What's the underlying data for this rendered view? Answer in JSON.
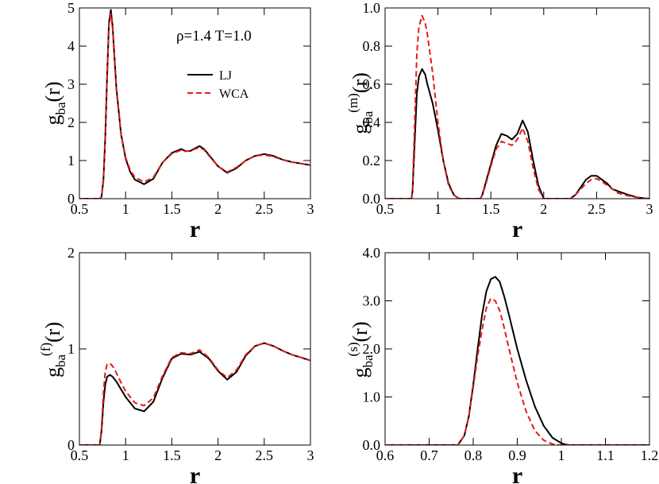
{
  "figure": {
    "annotation": "ρ=1.4   T=1.0",
    "legend": [
      {
        "label": "LJ",
        "color": "#000000",
        "dash": "solid"
      },
      {
        "label": "WCA",
        "color": "#e41a1c",
        "dash": "dashed"
      }
    ]
  },
  "chart_data": [
    {
      "type": "line",
      "name": "top-left",
      "ylabel_main": "g",
      "ylabel_sub": "ba",
      "ylabel_sup": "",
      "ylabel_tail": "(r)",
      "xlabel": "r",
      "xlim": [
        0.5,
        3.0
      ],
      "ylim": [
        0,
        5
      ],
      "xticks": [
        0.5,
        1,
        1.5,
        2,
        2.5,
        3
      ],
      "xtick_labels": [
        "0.5",
        "1",
        "1.5",
        "2",
        "2.5",
        "3"
      ],
      "yticks": [
        0,
        1,
        2,
        3,
        4,
        5
      ],
      "ytick_labels": [
        "0",
        "1",
        "2",
        "3",
        "4",
        "5"
      ],
      "series": [
        {
          "name": "LJ",
          "color": "#000000",
          "dash": "solid",
          "x": [
            0.5,
            0.72,
            0.74,
            0.76,
            0.78,
            0.8,
            0.82,
            0.84,
            0.86,
            0.88,
            0.9,
            0.95,
            1.0,
            1.05,
            1.1,
            1.2,
            1.3,
            1.4,
            1.5,
            1.6,
            1.65,
            1.7,
            1.75,
            1.8,
            1.85,
            1.9,
            2.0,
            2.1,
            2.2,
            2.3,
            2.4,
            2.5,
            2.6,
            2.7,
            2.8,
            3.0
          ],
          "y": [
            0,
            0,
            0.05,
            0.5,
            1.6,
            3.2,
            4.6,
            4.95,
            4.5,
            3.7,
            2.9,
            1.7,
            1.05,
            0.7,
            0.5,
            0.38,
            0.52,
            0.95,
            1.2,
            1.3,
            1.25,
            1.25,
            1.32,
            1.38,
            1.3,
            1.15,
            0.85,
            0.68,
            0.8,
            1.0,
            1.12,
            1.17,
            1.12,
            1.02,
            0.96,
            0.88
          ]
        },
        {
          "name": "WCA",
          "color": "#e41a1c",
          "dash": "dashed",
          "x": [
            0.5,
            0.72,
            0.74,
            0.76,
            0.78,
            0.8,
            0.82,
            0.84,
            0.86,
            0.88,
            0.9,
            0.95,
            1.0,
            1.05,
            1.1,
            1.2,
            1.3,
            1.4,
            1.5,
            1.6,
            1.65,
            1.7,
            1.75,
            1.8,
            1.85,
            1.9,
            2.0,
            2.1,
            2.2,
            2.3,
            2.4,
            2.5,
            2.6,
            2.7,
            2.8,
            3.0
          ],
          "y": [
            0,
            0,
            0.06,
            0.55,
            1.7,
            3.25,
            4.55,
            4.85,
            4.45,
            3.65,
            2.85,
            1.7,
            1.08,
            0.75,
            0.56,
            0.44,
            0.56,
            0.95,
            1.18,
            1.27,
            1.24,
            1.26,
            1.3,
            1.34,
            1.28,
            1.13,
            0.85,
            0.7,
            0.82,
            1.0,
            1.12,
            1.15,
            1.1,
            1.02,
            0.96,
            0.88
          ]
        }
      ]
    },
    {
      "type": "line",
      "name": "top-right",
      "ylabel_main": "g",
      "ylabel_sub": "ba",
      "ylabel_sup": "(m)",
      "ylabel_tail": "(r)",
      "xlabel": "r",
      "xlim": [
        0.5,
        3.0
      ],
      "ylim": [
        0,
        1.0
      ],
      "xticks": [
        0.5,
        1,
        1.5,
        2,
        2.5,
        3
      ],
      "xtick_labels": [
        "0.5",
        "1",
        "1.5",
        "2",
        "2.5",
        "3"
      ],
      "yticks": [
        0,
        0.2,
        0.4,
        0.6,
        0.8,
        1.0
      ],
      "ytick_labels": [
        "0.0",
        "0.2",
        "0.4",
        "0.6",
        "0.8",
        "1.0"
      ],
      "series": [
        {
          "name": "LJ",
          "color": "#000000",
          "dash": "solid",
          "x": [
            0.5,
            0.75,
            0.76,
            0.78,
            0.8,
            0.82,
            0.85,
            0.88,
            0.9,
            0.95,
            1.0,
            1.05,
            1.1,
            1.15,
            1.2,
            1.4,
            1.42,
            1.45,
            1.5,
            1.55,
            1.6,
            1.65,
            1.7,
            1.75,
            1.8,
            1.85,
            1.9,
            1.95,
            2.0,
            2.25,
            2.3,
            2.35,
            2.4,
            2.45,
            2.5,
            2.55,
            2.6,
            2.65,
            2.7,
            2.8,
            2.9,
            3.0
          ],
          "y": [
            0,
            0,
            0.04,
            0.3,
            0.55,
            0.64,
            0.68,
            0.65,
            0.6,
            0.5,
            0.36,
            0.2,
            0.08,
            0.02,
            0,
            0,
            0.02,
            0.08,
            0.18,
            0.28,
            0.34,
            0.33,
            0.31,
            0.34,
            0.41,
            0.35,
            0.2,
            0.07,
            0,
            0,
            0.02,
            0.06,
            0.1,
            0.12,
            0.12,
            0.1,
            0.08,
            0.05,
            0.04,
            0.02,
            0.005,
            0
          ]
        },
        {
          "name": "WCA",
          "color": "#e41a1c",
          "dash": "dashed",
          "x": [
            0.5,
            0.75,
            0.76,
            0.78,
            0.8,
            0.82,
            0.85,
            0.88,
            0.9,
            0.95,
            1.0,
            1.05,
            1.1,
            1.15,
            1.2,
            1.4,
            1.42,
            1.45,
            1.5,
            1.55,
            1.6,
            1.65,
            1.7,
            1.75,
            1.8,
            1.85,
            1.9,
            1.95,
            2.0,
            2.25,
            2.3,
            2.35,
            2.4,
            2.45,
            2.5,
            2.55,
            2.6,
            2.65,
            2.7,
            2.8,
            2.9,
            3.0
          ],
          "y": [
            0,
            0,
            0.05,
            0.4,
            0.76,
            0.9,
            0.96,
            0.92,
            0.86,
            0.66,
            0.4,
            0.2,
            0.07,
            0.02,
            0,
            0,
            0.02,
            0.07,
            0.17,
            0.26,
            0.3,
            0.29,
            0.28,
            0.31,
            0.37,
            0.3,
            0.16,
            0.05,
            0,
            0,
            0.02,
            0.05,
            0.08,
            0.1,
            0.105,
            0.09,
            0.07,
            0.05,
            0.03,
            0.015,
            0.005,
            0
          ]
        }
      ]
    },
    {
      "type": "line",
      "name": "bottom-left",
      "ylabel_main": "g",
      "ylabel_sub": "ba",
      "ylabel_sup": "(f)",
      "ylabel_tail": "(r)",
      "xlabel": "r",
      "xlim": [
        0.5,
        3.0
      ],
      "ylim": [
        0,
        2
      ],
      "xticks": [
        0.5,
        1,
        1.5,
        2,
        2.5,
        3
      ],
      "xtick_labels": [
        "0.5",
        "1",
        "1.5",
        "2",
        "2.5",
        "3"
      ],
      "yticks": [
        0,
        1,
        2
      ],
      "ytick_labels": [
        "0",
        "1",
        "2"
      ],
      "series": [
        {
          "name": "LJ",
          "color": "#000000",
          "dash": "solid",
          "x": [
            0.5,
            0.72,
            0.74,
            0.76,
            0.78,
            0.8,
            0.83,
            0.86,
            0.9,
            0.95,
            1.0,
            1.1,
            1.2,
            1.3,
            1.4,
            1.5,
            1.6,
            1.7,
            1.8,
            1.9,
            2.0,
            2.1,
            2.2,
            2.3,
            2.4,
            2.5,
            2.6,
            2.7,
            2.8,
            2.9,
            3.0
          ],
          "y": [
            0,
            0,
            0.15,
            0.45,
            0.63,
            0.71,
            0.73,
            0.71,
            0.66,
            0.58,
            0.5,
            0.38,
            0.35,
            0.45,
            0.7,
            0.9,
            0.95,
            0.94,
            0.97,
            0.9,
            0.77,
            0.68,
            0.76,
            0.93,
            1.03,
            1.06,
            1.03,
            0.98,
            0.94,
            0.91,
            0.88
          ]
        },
        {
          "name": "WCA",
          "color": "#e41a1c",
          "dash": "dashed",
          "x": [
            0.5,
            0.72,
            0.74,
            0.76,
            0.78,
            0.8,
            0.83,
            0.86,
            0.9,
            0.95,
            1.0,
            1.1,
            1.2,
            1.3,
            1.4,
            1.5,
            1.6,
            1.7,
            1.8,
            1.9,
            2.0,
            2.1,
            2.2,
            2.3,
            2.4,
            2.5,
            2.6,
            2.7,
            2.8,
            2.9,
            3.0
          ],
          "y": [
            0,
            0,
            0.18,
            0.55,
            0.76,
            0.84,
            0.85,
            0.82,
            0.75,
            0.65,
            0.56,
            0.44,
            0.41,
            0.49,
            0.72,
            0.91,
            0.96,
            0.95,
            0.99,
            0.91,
            0.78,
            0.7,
            0.78,
            0.94,
            1.03,
            1.06,
            1.03,
            0.98,
            0.94,
            0.91,
            0.88
          ]
        }
      ]
    },
    {
      "type": "line",
      "name": "bottom-right",
      "ylabel_main": "g",
      "ylabel_sub": "ba",
      "ylabel_sup": "(s)",
      "ylabel_tail": "(r)",
      "xlabel": "r",
      "xlim": [
        0.6,
        1.2
      ],
      "ylim": [
        0,
        4.0
      ],
      "xticks": [
        0.6,
        0.7,
        0.8,
        0.9,
        1.0,
        1.1,
        1.2
      ],
      "xtick_labels": [
        "0.6",
        "0.7",
        "0.8",
        "0.9",
        "1",
        "1.1",
        "1.2"
      ],
      "yticks": [
        0,
        1,
        2,
        3,
        4
      ],
      "ytick_labels": [
        "0.0",
        "1.0",
        "2.0",
        "3.0",
        "4.0"
      ],
      "series": [
        {
          "name": "LJ",
          "color": "#000000",
          "dash": "solid",
          "x": [
            0.6,
            0.765,
            0.78,
            0.79,
            0.8,
            0.81,
            0.82,
            0.83,
            0.84,
            0.85,
            0.86,
            0.87,
            0.88,
            0.9,
            0.92,
            0.94,
            0.96,
            0.98,
            1.0,
            1.01,
            1.02,
            1.2
          ],
          "y": [
            0,
            0,
            0.2,
            0.6,
            1.25,
            2.0,
            2.7,
            3.2,
            3.45,
            3.5,
            3.4,
            3.1,
            2.75,
            2.0,
            1.35,
            0.8,
            0.4,
            0.15,
            0.04,
            0.01,
            0,
            0
          ]
        },
        {
          "name": "WCA",
          "color": "#e41a1c",
          "dash": "dashed",
          "x": [
            0.6,
            0.765,
            0.78,
            0.79,
            0.8,
            0.81,
            0.82,
            0.83,
            0.84,
            0.85,
            0.86,
            0.87,
            0.88,
            0.9,
            0.92,
            0.94,
            0.96,
            0.98,
            0.99,
            1.2
          ],
          "y": [
            0,
            0,
            0.2,
            0.6,
            1.2,
            1.85,
            2.4,
            2.85,
            3.05,
            3.0,
            2.8,
            2.45,
            2.05,
            1.3,
            0.7,
            0.3,
            0.1,
            0.02,
            0,
            0
          ]
        }
      ]
    }
  ]
}
